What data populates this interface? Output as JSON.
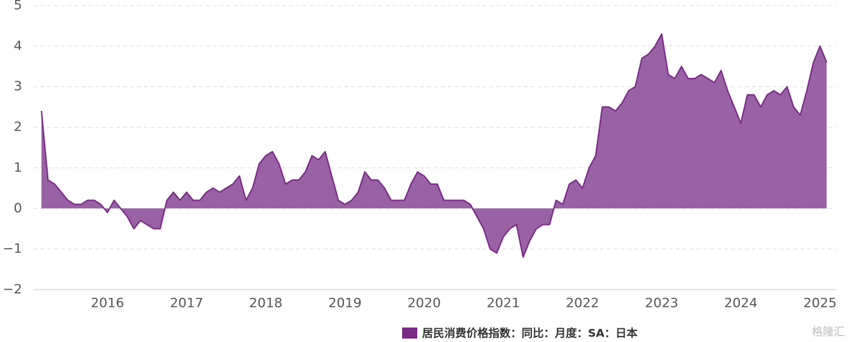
{
  "chart_data": {
    "type": "area",
    "categories": [
      null,
      null,
      null,
      null,
      null,
      null,
      null,
      null,
      null,
      null,
      "2016",
      null,
      null,
      null,
      null,
      null,
      null,
      null,
      null,
      null,
      null,
      null,
      "2017",
      null,
      null,
      null,
      null,
      null,
      null,
      null,
      null,
      null,
      null,
      null,
      "2018",
      null,
      null,
      null,
      null,
      null,
      null,
      null,
      null,
      null,
      null,
      null,
      "2019",
      null,
      null,
      null,
      null,
      null,
      null,
      null,
      null,
      null,
      null,
      null,
      "2020",
      null,
      null,
      null,
      null,
      null,
      null,
      null,
      null,
      null,
      null,
      null,
      "2021",
      null,
      null,
      null,
      null,
      null,
      null,
      null,
      null,
      null,
      null,
      null,
      "2022",
      null,
      null,
      null,
      null,
      null,
      null,
      null,
      null,
      null,
      null,
      null,
      "2023",
      null,
      null,
      null,
      null,
      null,
      null,
      null,
      null,
      null,
      null,
      null,
      "2024",
      null,
      null,
      null,
      null,
      null,
      null,
      null,
      null,
      null,
      null,
      null,
      "2025",
      null
    ],
    "series": [
      {
        "name": "居民消费价格指数：同比：月度：SA：日本",
        "color": "#7a2a86",
        "fill": "#9862a4",
        "values": [
          2.4,
          0.7,
          0.6,
          0.4,
          0.2,
          0.1,
          0.1,
          0.2,
          0.2,
          0.1,
          -0.1,
          0.2,
          0.0,
          -0.2,
          -0.5,
          -0.3,
          -0.4,
          -0.5,
          -0.5,
          0.2,
          0.4,
          0.2,
          0.4,
          0.2,
          0.2,
          0.4,
          0.5,
          0.4,
          0.5,
          0.6,
          0.8,
          0.2,
          0.5,
          1.1,
          1.3,
          1.4,
          1.1,
          0.6,
          0.7,
          0.7,
          0.9,
          1.3,
          1.2,
          1.4,
          0.8,
          0.2,
          0.1,
          0.2,
          0.4,
          0.9,
          0.7,
          0.7,
          0.5,
          0.2,
          0.2,
          0.2,
          0.6,
          0.9,
          0.8,
          0.6,
          0.6,
          0.2,
          0.2,
          0.2,
          0.2,
          0.1,
          -0.2,
          -0.5,
          -1.0,
          -1.1,
          -0.7,
          -0.5,
          -0.4,
          -1.2,
          -0.8,
          -0.5,
          -0.4,
          -0.4,
          0.2,
          0.1,
          0.6,
          0.7,
          0.5,
          1.0,
          1.3,
          2.5,
          2.5,
          2.4,
          2.6,
          2.9,
          3.0,
          3.7,
          3.8,
          4.0,
          4.3,
          3.3,
          3.2,
          3.5,
          3.2,
          3.2,
          3.3,
          3.2,
          3.1,
          3.4,
          2.9,
          2.5,
          2.1,
          2.8,
          2.8,
          2.5,
          2.8,
          2.9,
          2.8,
          3.0,
          2.5,
          2.3,
          2.9,
          3.6,
          4.0,
          3.6
        ]
      }
    ],
    "ylim": [
      -2,
      5
    ],
    "yticks": [
      {
        "value": -2,
        "label": "−2"
      },
      {
        "value": -1,
        "label": "−1"
      },
      0,
      1,
      2,
      3,
      4,
      5
    ],
    "grid": true,
    "watermark": "格隆汇"
  }
}
